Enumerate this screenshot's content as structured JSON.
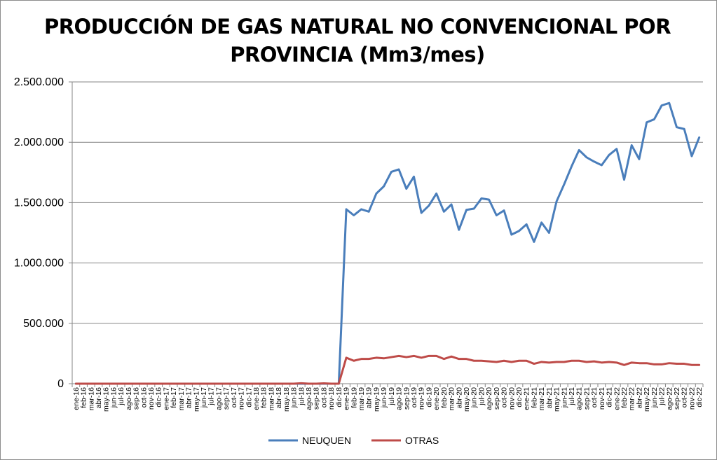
{
  "chart_data": {
    "type": "line",
    "title": "PRODUCCIÓN DE GAS NATURAL NO CONVENCIONAL POR PROVINCIA (Mm3/mes)",
    "xlabel": "",
    "ylabel": "",
    "ylim": [
      0,
      2500000
    ],
    "yticks": [
      0,
      500000,
      1000000,
      1500000,
      2000000,
      2500000
    ],
    "ytick_labels": [
      "0",
      "500.000",
      "1.000.000",
      "1.500.000",
      "2.000.000",
      "2.500.000"
    ],
    "grid": true,
    "legend_position": "bottom",
    "categories": [
      "ene-16",
      "feb-16",
      "mar-16",
      "abr-16",
      "may-16",
      "jun-16",
      "jul-16",
      "ago-16",
      "sep-16",
      "oct-16",
      "nov-16",
      "dic-16",
      "ene-17",
      "feb-17",
      "mar-17",
      "abr-17",
      "may-17",
      "jun-17",
      "jul-17",
      "ago-17",
      "sep-17",
      "oct-17",
      "nov-17",
      "dic-17",
      "ene-18",
      "feb-18",
      "mar-18",
      "abr-18",
      "may-18",
      "jun-18",
      "jul-18",
      "ago-18",
      "sep-18",
      "oct-18",
      "nov-18",
      "dic-18",
      "ene-19",
      "feb-19",
      "mar-19",
      "abr-19",
      "may-19",
      "jun-19",
      "jul-19",
      "ago-19",
      "sep-19",
      "oct-19",
      "nov-19",
      "dic-19",
      "ene-20",
      "feb-20",
      "mar-20",
      "abr-20",
      "may-20",
      "jun-20",
      "jul-20",
      "ago-20",
      "sep-20",
      "oct-20",
      "nov-20",
      "dic-20",
      "ene-21",
      "feb-21",
      "mar-21",
      "abr-21",
      "may-21",
      "jun-21",
      "jul-21",
      "ago-21",
      "sep-21",
      "oct-21",
      "nov-21",
      "dic-21",
      "ene-22",
      "feb-22",
      "mar-22",
      "abr-22",
      "may-22",
      "jun-22",
      "jul-22",
      "ago-22",
      "sep-22",
      "oct-22",
      "nov-22",
      "dic-22"
    ],
    "series": [
      {
        "name": "NEUQUEN",
        "color": "#4a7ebb",
        "values": [
          0,
          0,
          0,
          0,
          0,
          0,
          0,
          0,
          0,
          0,
          0,
          0,
          0,
          0,
          0,
          0,
          0,
          0,
          0,
          0,
          0,
          0,
          0,
          0,
          0,
          0,
          0,
          0,
          0,
          0,
          0,
          0,
          0,
          0,
          0,
          0,
          1445000,
          1395000,
          1445000,
          1425000,
          1575000,
          1635000,
          1755000,
          1775000,
          1615000,
          1715000,
          1415000,
          1475000,
          1575000,
          1425000,
          1485000,
          1275000,
          1440000,
          1450000,
          1535000,
          1525000,
          1395000,
          1435000,
          1235000,
          1265000,
          1320000,
          1175000,
          1335000,
          1250000,
          1510000,
          1650000,
          1800000,
          1935000,
          1875000,
          1840000,
          1810000,
          1895000,
          1945000,
          1690000,
          1975000,
          1860000,
          2165000,
          2190000,
          2305000,
          2325000,
          2125000,
          2110000,
          1885000,
          2040000
        ]
      },
      {
        "name": "OTRAS",
        "color": "#be4b48",
        "values": [
          0,
          0,
          0,
          0,
          0,
          0,
          0,
          0,
          0,
          0,
          0,
          0,
          0,
          0,
          0,
          0,
          0,
          0,
          0,
          0,
          0,
          0,
          0,
          0,
          0,
          0,
          0,
          0,
          0,
          0,
          4000,
          0,
          0,
          3000,
          0,
          0,
          215000,
          190000,
          205000,
          205000,
          215000,
          210000,
          220000,
          230000,
          220000,
          230000,
          215000,
          230000,
          230000,
          205000,
          225000,
          205000,
          205000,
          190000,
          190000,
          185000,
          180000,
          190000,
          180000,
          190000,
          190000,
          165000,
          180000,
          175000,
          180000,
          180000,
          190000,
          190000,
          180000,
          185000,
          175000,
          180000,
          175000,
          155000,
          175000,
          170000,
          170000,
          160000,
          160000,
          170000,
          165000,
          165000,
          155000,
          155000
        ]
      }
    ]
  }
}
